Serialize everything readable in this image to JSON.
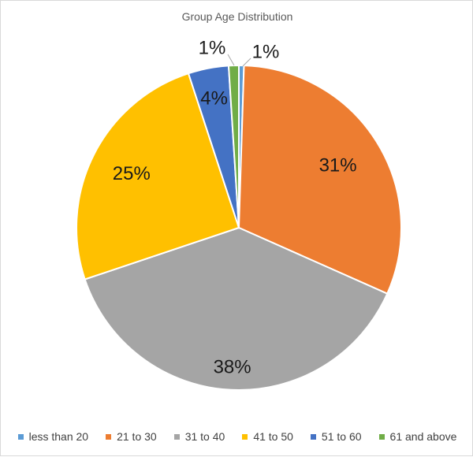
{
  "chart_data": {
    "type": "pie",
    "title": "Group Age Distribution",
    "legend_position": "bottom",
    "slices": [
      {
        "name": "less than 20",
        "value": 0.5,
        "label": "1%",
        "color": "#5B9BD5"
      },
      {
        "name": "21 to 30",
        "value": 31,
        "label": "31%",
        "color": "#ED7D31"
      },
      {
        "name": "31 to 40",
        "value": 38,
        "label": "38%",
        "color": "#A5A5A5"
      },
      {
        "name": "41 to 50",
        "value": 25,
        "label": "25%",
        "color": "#FFC000"
      },
      {
        "name": "51 to 60",
        "value": 4,
        "label": "4%",
        "color": "#4472C4"
      },
      {
        "name": "61 and above",
        "value": 1,
        "label": "1%",
        "color": "#70AD47"
      }
    ]
  }
}
